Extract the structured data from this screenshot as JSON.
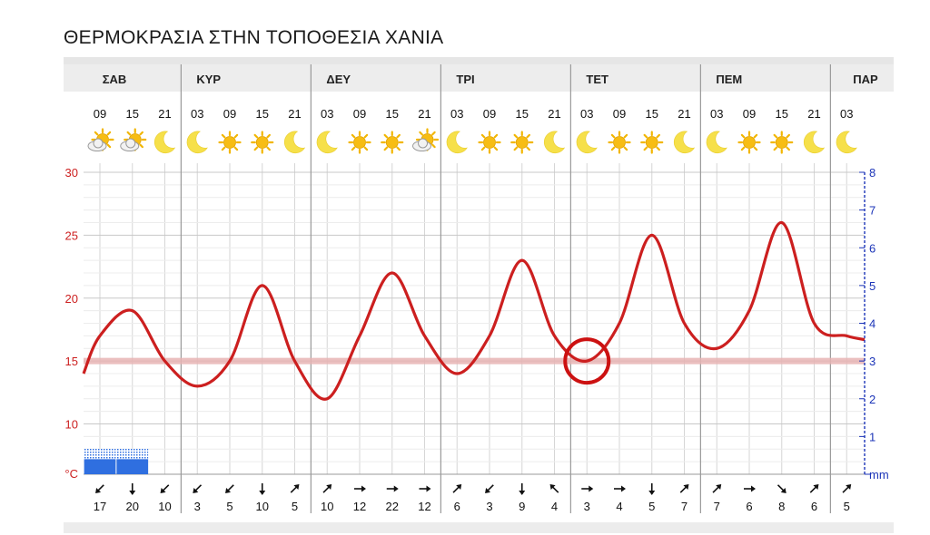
{
  "title": "ΘΕΡΜΟΚΡΑΣΙΑ ΣΤΗΝ ΤΟΠΟΘΕΣΙΑ ΧΑΝΙΑ",
  "days": [
    "ΣΑΒ",
    "ΚΥΡ",
    "ΔΕΥ",
    "ΤΡΙ",
    "ΤΕΤ",
    "ΠΕΜ",
    "ΠΑΡ"
  ],
  "icon_names": [
    "sun-icon",
    "moon-icon",
    "partly-cloudy-icon"
  ],
  "colors": {
    "temperature": "#cc1f1f",
    "precipitation": "#2f6fe0",
    "threshold_band": "#e8b4b4",
    "highlight_circle": "#cc1111",
    "precip_axis": "#1c35b8"
  },
  "chart_data": {
    "type": "line",
    "x": [
      "09",
      "15",
      "21",
      "03",
      "09",
      "15",
      "21",
      "03",
      "09",
      "15",
      "21",
      "03",
      "09",
      "15",
      "21",
      "03",
      "09",
      "15",
      "21",
      "03",
      "09",
      "15",
      "21",
      "03"
    ],
    "x_day": [
      "ΣΑΒ",
      "ΣΑΒ",
      "ΣΑΒ",
      "ΚΥΡ",
      "ΚΥΡ",
      "ΚΥΡ",
      "ΚΥΡ",
      "ΔΕΥ",
      "ΔΕΥ",
      "ΔΕΥ",
      "ΔΕΥ",
      "ΤΡΙ",
      "ΤΡΙ",
      "ΤΡΙ",
      "ΤΡΙ",
      "ΤΕΤ",
      "ΤΕΤ",
      "ΤΕΤ",
      "ΤΕΤ",
      "ΠΕΜ",
      "ΠΕΜ",
      "ΠΕΜ",
      "ΠΕΜ",
      "ΠΑΡ"
    ],
    "weather_icons": [
      "partly-cloudy-icon",
      "partly-cloudy-icon",
      "moon-icon",
      "moon-icon",
      "sun-icon",
      "sun-icon",
      "moon-icon",
      "moon-icon",
      "sun-icon",
      "sun-icon",
      "partly-cloudy-icon",
      "moon-icon",
      "sun-icon",
      "sun-icon",
      "moon-icon",
      "moon-icon",
      "sun-icon",
      "sun-icon",
      "moon-icon",
      "moon-icon",
      "sun-icon",
      "sun-icon",
      "moon-icon",
      "moon-icon"
    ],
    "series": [
      {
        "unit": "°C",
        "values": [
          17,
          19,
          15,
          13,
          15,
          21,
          15,
          12,
          17,
          22,
          17,
          14,
          17,
          23,
          17,
          15,
          18,
          25,
          18,
          16,
          19,
          26,
          18,
          17
        ]
      }
    ],
    "precipitation_mm": [
      0.4,
      0.4,
      0,
      0,
      0,
      0,
      0,
      0,
      0,
      0,
      0,
      0,
      0,
      0,
      0,
      0,
      0,
      0,
      0,
      0,
      0,
      0,
      0,
      0
    ],
    "wind_direction": [
      "sw",
      "s",
      "sw",
      "sw",
      "sw",
      "s",
      "ne",
      "ne",
      "e",
      "e",
      "e",
      "ne",
      "sw",
      "s",
      "nw",
      "e",
      "e",
      "s",
      "ne",
      "ne",
      "e",
      "se",
      "ne",
      "ne"
    ],
    "wind_speed": [
      "17",
      "20",
      "10",
      "3",
      "5",
      "10",
      "5",
      "10",
      "12",
      "22",
      "12",
      "6",
      "3",
      "9",
      "4",
      "3",
      "4",
      "5",
      "7",
      "7",
      "6",
      "8",
      "6",
      "5"
    ],
    "y_left": {
      "unit": "°C",
      "ticks": [
        10,
        15,
        20,
        25,
        30
      ],
      "range": [
        6,
        30
      ]
    },
    "y_right": {
      "unit": "mm",
      "ticks": [
        1,
        2,
        3,
        4,
        5,
        6,
        7,
        8
      ],
      "range": [
        0,
        8
      ]
    },
    "threshold": 15,
    "highlight_index": 15,
    "grid": true
  }
}
